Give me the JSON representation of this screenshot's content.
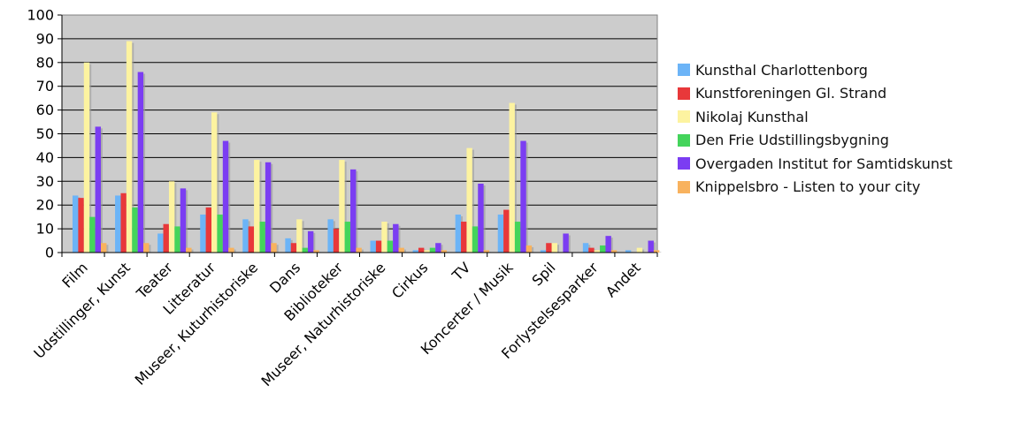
{
  "chart_data": {
    "type": "bar",
    "categories": [
      "Film",
      "Udstillinger, Kunst",
      "Teater",
      "Litteratur",
      "Museer, Kuturhistoriske",
      "Dans",
      "Biblioteker",
      "Museer, Naturhistoriske",
      "Cirkus",
      "TV",
      "Koncerter / Musik",
      "Spil",
      "Forlystelsesparker",
      "Andet"
    ],
    "series": [
      {
        "name": "Kunsthal Charlottenborg",
        "color": "#6cb4f7",
        "values": [
          24,
          24,
          8,
          16,
          14,
          6,
          14,
          5,
          1,
          16,
          16,
          1,
          4,
          1
        ]
      },
      {
        "name": "Kunstforeningen Gl. Strand",
        "color": "#e8383a",
        "values": [
          23,
          25,
          12,
          19,
          11,
          4,
          10,
          5,
          2,
          13,
          18,
          4,
          2,
          0
        ]
      },
      {
        "name": "Nikolaj Kunsthal",
        "color": "#fdf3a0",
        "values": [
          80,
          89,
          30,
          59,
          39,
          14,
          39,
          13,
          1,
          44,
          63,
          4,
          1,
          2
        ]
      },
      {
        "name": "Den Frie Udstillingsbygning",
        "color": "#44d45b",
        "values": [
          15,
          19,
          11,
          16,
          13,
          2,
          13,
          5,
          2,
          11,
          13,
          0,
          3,
          0
        ]
      },
      {
        "name": "Overgaden Institut for Samtidskunst",
        "color": "#7b3df2",
        "values": [
          53,
          76,
          27,
          47,
          38,
          9,
          35,
          12,
          4,
          29,
          47,
          8,
          7,
          5
        ]
      },
      {
        "name": "Knippelsbro - Listen to your city",
        "color": "#f8b25e",
        "values": [
          4,
          4,
          2,
          2,
          4,
          1,
          2,
          2,
          1,
          1,
          3,
          0,
          1,
          1
        ]
      }
    ],
    "ylim": [
      0,
      100
    ],
    "yticks": [
      0,
      10,
      20,
      30,
      40,
      50,
      60,
      70,
      80,
      90,
      100
    ],
    "grid": true,
    "legend_position": "right",
    "title": "",
    "xlabel": "",
    "ylabel": ""
  }
}
